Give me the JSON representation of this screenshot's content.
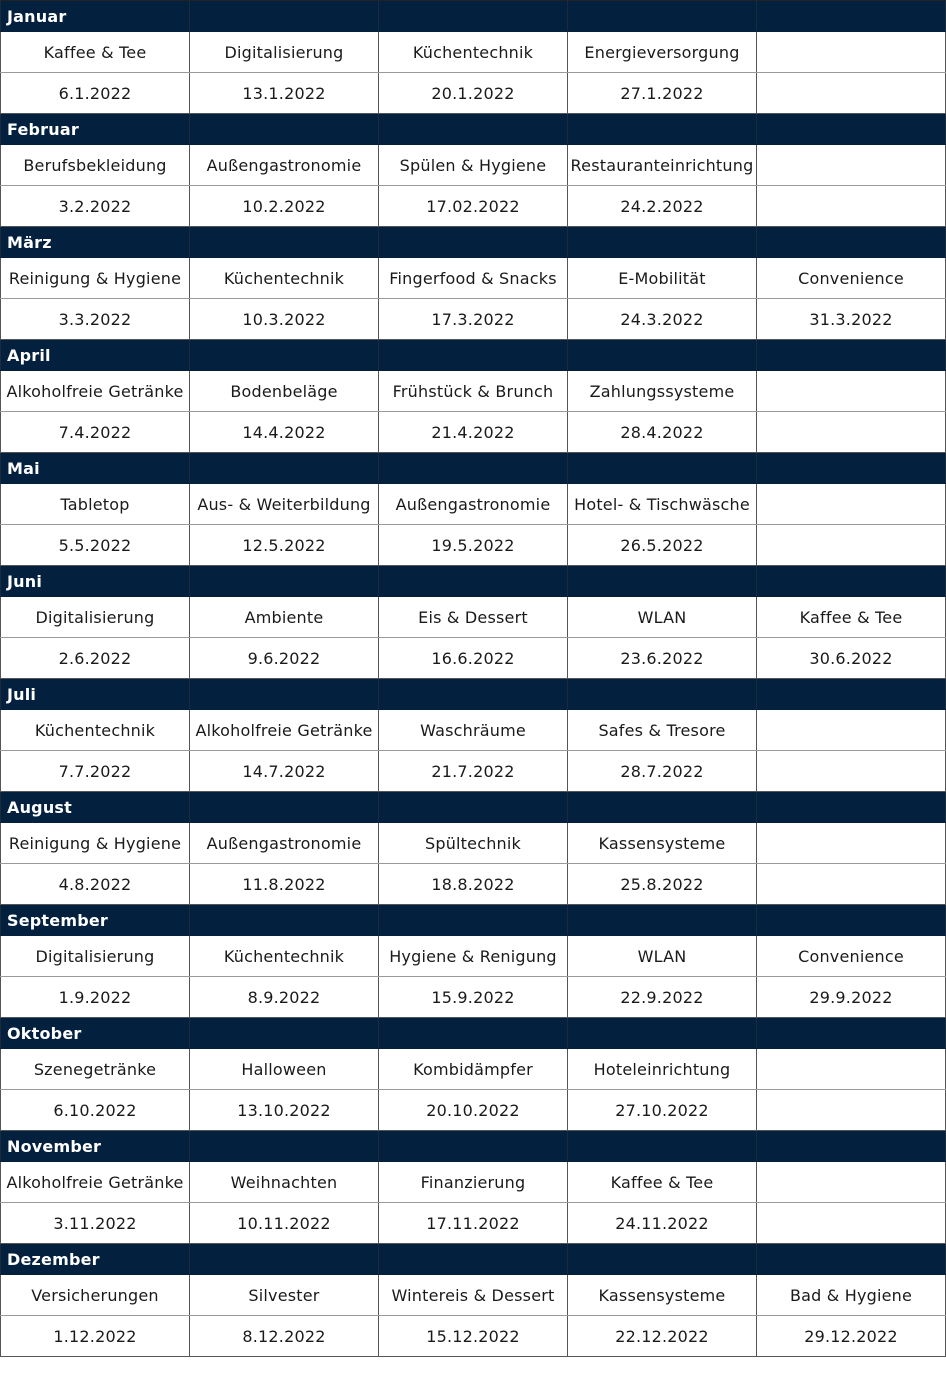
{
  "colors": {
    "header_bg": "#03203f",
    "header_text": "#ffffff"
  },
  "months": [
    {
      "name": "Januar",
      "topics": [
        "Kaffee & Tee",
        "Digitalisierung",
        "Küchentechnik",
        "Energieversorgung",
        ""
      ],
      "dates": [
        "6.1.2022",
        "13.1.2022",
        "20.1.2022",
        "27.1.2022",
        ""
      ]
    },
    {
      "name": "Februar",
      "topics": [
        "Berufsbekleidung",
        "Außengastronomie",
        "Spülen & Hygiene",
        "Restauranteinrichtung",
        ""
      ],
      "dates": [
        "3.2.2022",
        "10.2.2022",
        "17.02.2022",
        "24.2.2022",
        ""
      ]
    },
    {
      "name": "März",
      "topics": [
        "Reinigung & Hygiene",
        "Küchentechnik",
        "Fingerfood & Snacks",
        "E-Mobilität",
        "Convenience"
      ],
      "dates": [
        "3.3.2022",
        "10.3.2022",
        "17.3.2022",
        "24.3.2022",
        "31.3.2022"
      ]
    },
    {
      "name": "April",
      "topics": [
        "Alkoholfreie Getränke",
        "Bodenbeläge",
        "Frühstück & Brunch",
        "Zahlungssysteme",
        ""
      ],
      "dates": [
        "7.4.2022",
        "14.4.2022",
        "21.4.2022",
        "28.4.2022",
        ""
      ]
    },
    {
      "name": "Mai",
      "topics": [
        "Tabletop",
        "Aus- & Weiterbildung",
        "Außengastronomie",
        "Hotel- & Tischwäsche",
        ""
      ],
      "dates": [
        "5.5.2022",
        "12.5.2022",
        "19.5.2022",
        "26.5.2022",
        ""
      ]
    },
    {
      "name": "Juni",
      "topics": [
        "Digitalisierung",
        "Ambiente",
        "Eis & Dessert",
        "WLAN",
        "Kaffee & Tee"
      ],
      "dates": [
        "2.6.2022",
        "9.6.2022",
        "16.6.2022",
        "23.6.2022",
        "30.6.2022"
      ]
    },
    {
      "name": "Juli",
      "topics": [
        "Küchentechnik",
        "Alkoholfreie Getränke",
        "Waschräume",
        "Safes & Tresore",
        ""
      ],
      "dates": [
        "7.7.2022",
        "14.7.2022",
        "21.7.2022",
        "28.7.2022",
        ""
      ]
    },
    {
      "name": "August",
      "topics": [
        "Reinigung & Hygiene",
        "Außengastronomie",
        "Spültechnik",
        "Kassensysteme",
        ""
      ],
      "dates": [
        "4.8.2022",
        "11.8.2022",
        "18.8.2022",
        "25.8.2022",
        ""
      ]
    },
    {
      "name": "September",
      "topics": [
        "Digitalisierung",
        "Küchentechnik",
        "Hygiene & Renigung",
        "WLAN",
        "Convenience"
      ],
      "dates": [
        "1.9.2022",
        "8.9.2022",
        "15.9.2022",
        "22.9.2022",
        "29.9.2022"
      ]
    },
    {
      "name": "Oktober",
      "topics": [
        "Szenegetränke",
        "Halloween",
        "Kombidämpfer",
        "Hoteleinrichtung",
        ""
      ],
      "dates": [
        "6.10.2022",
        "13.10.2022",
        "20.10.2022",
        "27.10.2022",
        ""
      ]
    },
    {
      "name": "November",
      "topics": [
        "Alkoholfreie Getränke",
        "Weihnachten",
        "Finanzierung",
        "Kaffee & Tee",
        ""
      ],
      "dates": [
        "3.11.2022",
        "10.11.2022",
        "17.11.2022",
        "24.11.2022",
        ""
      ]
    },
    {
      "name": "Dezember",
      "topics": [
        "Versicherungen",
        "Silvester",
        "Wintereis & Dessert",
        "Kassensysteme",
        "Bad & Hygiene"
      ],
      "dates": [
        "1.12.2022",
        "8.12.2022",
        "15.12.2022",
        "22.12.2022",
        "29.12.2022"
      ]
    }
  ]
}
